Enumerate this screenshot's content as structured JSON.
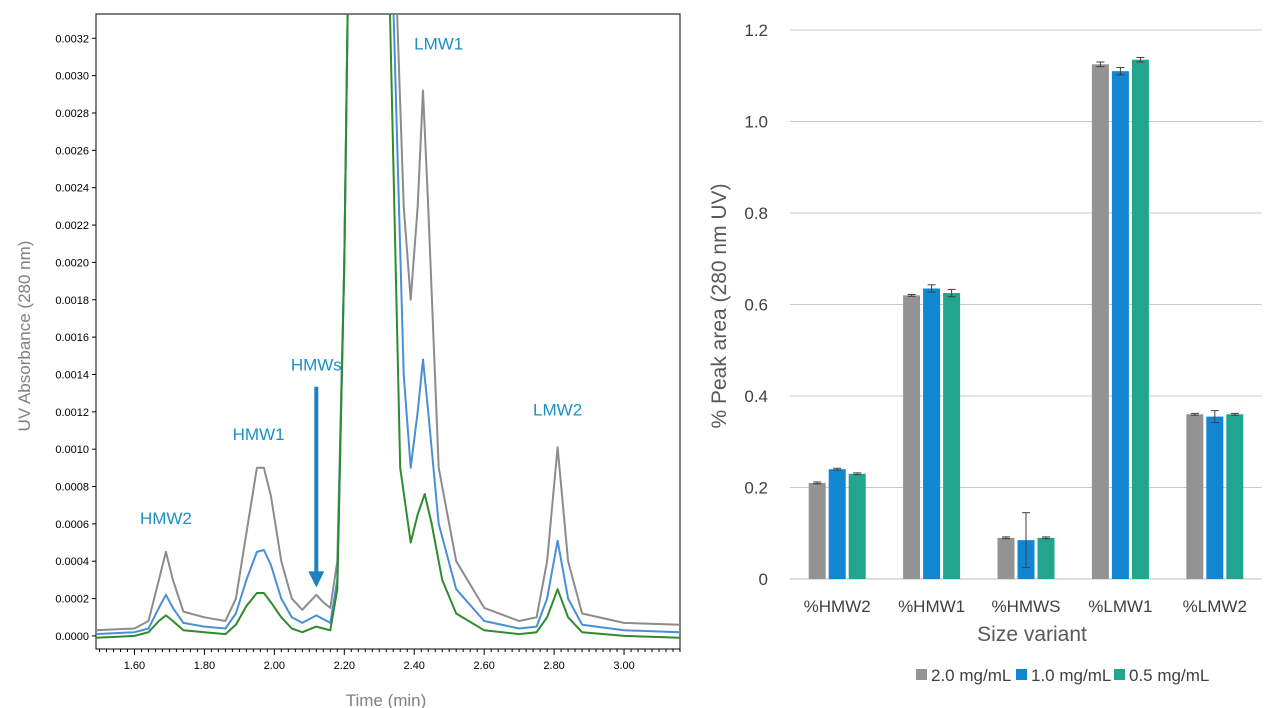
{
  "chart_data": [
    {
      "type": "line",
      "xlabel": "Time (min)",
      "ylabel": "UV Absorbance (280 nm)",
      "xlim": [
        1.49,
        3.16
      ],
      "ylim": [
        -7e-05,
        0.00333
      ],
      "x_ticks": [
        "1.60",
        "1.80",
        "2.00",
        "2.20",
        "2.40",
        "2.60",
        "2.80",
        "3.00"
      ],
      "y_ticks": [
        "0.0000",
        "0.0002",
        "0.0004",
        "0.0006",
        "0.0008",
        "0.0010",
        "0.0012",
        "0.0014",
        "0.0016",
        "0.0018",
        "0.0020",
        "0.0022",
        "0.0024",
        "0.0026",
        "0.0028",
        "0.0030",
        "0.0032"
      ],
      "series": [
        {
          "color": "#8c8c8c",
          "points": [
            [
              1.49,
              3e-05
            ],
            [
              1.6,
              4e-05
            ],
            [
              1.64,
              8e-05
            ],
            [
              1.67,
              0.0003
            ],
            [
              1.69,
              0.00045
            ],
            [
              1.71,
              0.0003
            ],
            [
              1.74,
              0.00013
            ],
            [
              1.8,
              0.0001
            ],
            [
              1.86,
              8e-05
            ],
            [
              1.89,
              0.0002
            ],
            [
              1.92,
              0.00055
            ],
            [
              1.95,
              0.0009
            ],
            [
              1.97,
              0.0009
            ],
            [
              1.99,
              0.00075
            ],
            [
              2.02,
              0.0004
            ],
            [
              2.05,
              0.0002
            ],
            [
              2.08,
              0.00014
            ],
            [
              2.12,
              0.00022
            ],
            [
              2.14,
              0.00018
            ],
            [
              2.16,
              0.00015
            ],
            [
              2.18,
              0.0004
            ],
            [
              2.2,
              0.002
            ],
            [
              2.21,
              0.0034
            ],
            [
              2.35,
              0.0034
            ],
            [
              2.37,
              0.0023
            ],
            [
              2.39,
              0.0018
            ],
            [
              2.41,
              0.0023
            ],
            [
              2.425,
              0.00292
            ],
            [
              2.44,
              0.0023
            ],
            [
              2.47,
              0.0009
            ],
            [
              2.52,
              0.0004
            ],
            [
              2.6,
              0.00015
            ],
            [
              2.7,
              8e-05
            ],
            [
              2.75,
              0.0001
            ],
            [
              2.78,
              0.0004
            ],
            [
              2.81,
              0.00101
            ],
            [
              2.84,
              0.0004
            ],
            [
              2.88,
              0.00012
            ],
            [
              3.0,
              7e-05
            ],
            [
              3.16,
              6e-05
            ]
          ]
        },
        {
          "color": "#4a8fd6",
          "points": [
            [
              1.49,
              1e-05
            ],
            [
              1.6,
              2e-05
            ],
            [
              1.64,
              4e-05
            ],
            [
              1.67,
              0.00015
            ],
            [
              1.69,
              0.00022
            ],
            [
              1.71,
              0.00015
            ],
            [
              1.74,
              7e-05
            ],
            [
              1.8,
              5e-05
            ],
            [
              1.86,
              4e-05
            ],
            [
              1.89,
              0.00012
            ],
            [
              1.92,
              0.0003
            ],
            [
              1.95,
              0.00045
            ],
            [
              1.97,
              0.00046
            ],
            [
              1.99,
              0.00038
            ],
            [
              2.02,
              0.0002
            ],
            [
              2.05,
              0.0001
            ],
            [
              2.08,
              7e-05
            ],
            [
              2.12,
              0.00011
            ],
            [
              2.14,
              9e-05
            ],
            [
              2.16,
              7e-05
            ],
            [
              2.18,
              0.0003
            ],
            [
              2.2,
              0.002
            ],
            [
              2.21,
              0.0034
            ],
            [
              2.34,
              0.0034
            ],
            [
              2.37,
              0.0014
            ],
            [
              2.39,
              0.0009
            ],
            [
              2.41,
              0.0012
            ],
            [
              2.425,
              0.00148
            ],
            [
              2.44,
              0.0012
            ],
            [
              2.47,
              0.0006
            ],
            [
              2.52,
              0.00025
            ],
            [
              2.6,
              8e-05
            ],
            [
              2.7,
              4e-05
            ],
            [
              2.75,
              5e-05
            ],
            [
              2.78,
              0.0002
            ],
            [
              2.81,
              0.00051
            ],
            [
              2.84,
              0.0002
            ],
            [
              2.88,
              6e-05
            ],
            [
              3.0,
              3e-05
            ],
            [
              3.16,
              2e-05
            ]
          ]
        },
        {
          "color": "#2e8b2e",
          "points": [
            [
              1.49,
              -1e-05
            ],
            [
              1.6,
              0.0
            ],
            [
              1.64,
              2e-05
            ],
            [
              1.67,
              8e-05
            ],
            [
              1.69,
              0.00011
            ],
            [
              1.71,
              8e-05
            ],
            [
              1.74,
              3e-05
            ],
            [
              1.8,
              2e-05
            ],
            [
              1.86,
              1e-05
            ],
            [
              1.89,
              6e-05
            ],
            [
              1.92,
              0.00016
            ],
            [
              1.95,
              0.00023
            ],
            [
              1.97,
              0.00023
            ],
            [
              1.99,
              0.00018
            ],
            [
              2.02,
              0.0001
            ],
            [
              2.05,
              4e-05
            ],
            [
              2.08,
              2e-05
            ],
            [
              2.12,
              5e-05
            ],
            [
              2.14,
              4e-05
            ],
            [
              2.16,
              3e-05
            ],
            [
              2.18,
              0.00025
            ],
            [
              2.2,
              0.002
            ],
            [
              2.21,
              0.0034
            ],
            [
              2.33,
              0.0034
            ],
            [
              2.36,
              0.0009
            ],
            [
              2.39,
              0.0005
            ],
            [
              2.41,
              0.00065
            ],
            [
              2.43,
              0.00076
            ],
            [
              2.45,
              0.0006
            ],
            [
              2.48,
              0.0003
            ],
            [
              2.52,
              0.00012
            ],
            [
              2.6,
              3e-05
            ],
            [
              2.7,
              1e-05
            ],
            [
              2.75,
              2e-05
            ],
            [
              2.78,
              0.0001
            ],
            [
              2.81,
              0.00025
            ],
            [
              2.84,
              0.0001
            ],
            [
              2.88,
              2e-05
            ],
            [
              3.0,
              0.0
            ],
            [
              3.16,
              -1e-05
            ]
          ]
        }
      ],
      "annotations": [
        {
          "text": "HMW2",
          "x": 1.69,
          "y": 0.0006
        },
        {
          "text": "HMW1",
          "x": 1.955,
          "y": 0.00105
        },
        {
          "text": "HMWs",
          "x": 2.12,
          "y": 0.00142,
          "arrow_to": [
            2.12,
            0.00026
          ]
        },
        {
          "text": "LMW1",
          "x": 2.47,
          "y": 0.00314
        },
        {
          "text": "LMW2",
          "x": 2.81,
          "y": 0.00118
        }
      ]
    },
    {
      "type": "bar",
      "xlabel": "Size variant",
      "ylabel": "% Peak area (280 nm UV)",
      "ylim": [
        0,
        1.2
      ],
      "y_ticks": [
        "0",
        "0.2",
        "0.4",
        "0.6",
        "0.8",
        "1.0",
        "1.2"
      ],
      "grid": true,
      "legend": "bottom",
      "categories": [
        "%HMW2",
        "%HMW1",
        "%HMWS",
        "%LMW1",
        "%LMW2"
      ],
      "series": [
        {
          "name": "2.0 mg/mL",
          "color": "#939393",
          "values": [
            0.21,
            0.62,
            0.09,
            1.125,
            0.36
          ],
          "errors": [
            0.002,
            0.002,
            0.002,
            0.005,
            0.002
          ]
        },
        {
          "name": "1.0 mg/mL",
          "color": "#1287d1",
          "values": [
            0.24,
            0.635,
            0.085,
            1.11,
            0.355
          ],
          "errors": [
            0.002,
            0.008,
            0.06,
            0.008,
            0.013
          ]
        },
        {
          "name": "0.5 mg/mL",
          "color": "#22a58f",
          "values": [
            0.23,
            0.625,
            0.09,
            1.135,
            0.36
          ],
          "errors": [
            0.002,
            0.008,
            0.002,
            0.005,
            0.002
          ]
        }
      ]
    }
  ]
}
